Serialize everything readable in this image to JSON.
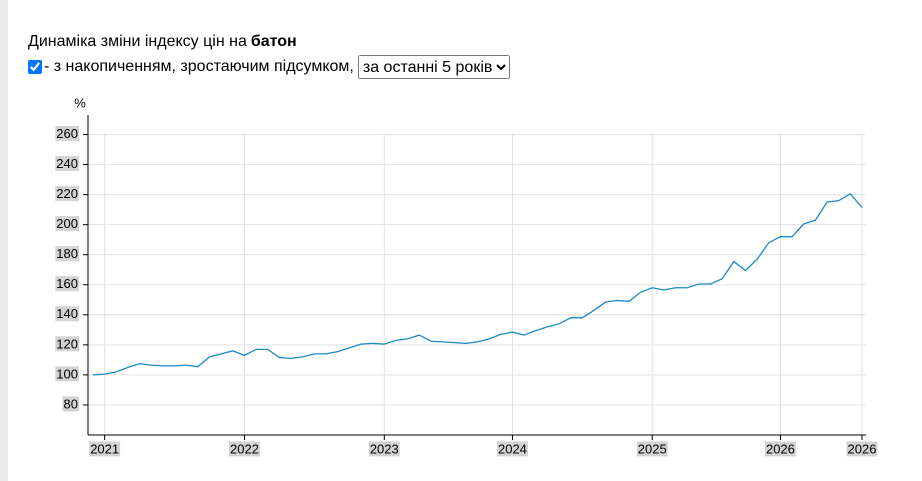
{
  "chart_data": {
    "type": "line",
    "title": "Динаміка зміни індексу цін на",
    "product": "батон",
    "option_label": "- з накопиченням, зростаючим підсумком,",
    "period": "за останні 5 років",
    "y_unit": "%",
    "categories": [
      null,
      "2021",
      null,
      null,
      null,
      null,
      null,
      null,
      null,
      null,
      null,
      null,
      null,
      "2022",
      null,
      null,
      null,
      null,
      null,
      null,
      null,
      null,
      null,
      null,
      null,
      "2023",
      null,
      null,
      null,
      null,
      null,
      null,
      null,
      null,
      null,
      null,
      "2024",
      null,
      null,
      null,
      null,
      null,
      null,
      null,
      null,
      null,
      null,
      null,
      "2025",
      null,
      null,
      null,
      null,
      null,
      null,
      null,
      null,
      null,
      null,
      "2026",
      null,
      null,
      null,
      null,
      null,
      null,
      "2026"
    ],
    "values": [
      100,
      100.5,
      102,
      105,
      107.5,
      106.5,
      106,
      106,
      106.5,
      105.5,
      112,
      114,
      116,
      113,
      117,
      117,
      111.5,
      111,
      112,
      114,
      114,
      115.5,
      118,
      120.5,
      121,
      120.5,
      123,
      124,
      126.5,
      122.5,
      122,
      121.5,
      121,
      122,
      124,
      127,
      128.5,
      126.5,
      129.5,
      132,
      134,
      138,
      138,
      143,
      148.5,
      149.5,
      149,
      155,
      158,
      156.5,
      158,
      158,
      160.5,
      160.5,
      164,
      175.5,
      169.5,
      177,
      188,
      192,
      192,
      200.5,
      203,
      215,
      216,
      220.5,
      211.5
    ],
    "color": "#1a8ac6",
    "ylim": [
      60,
      273
    ],
    "yticks": [
      80,
      100,
      120,
      140,
      160,
      180,
      200,
      220,
      240,
      260
    ],
    "grid": true
  }
}
